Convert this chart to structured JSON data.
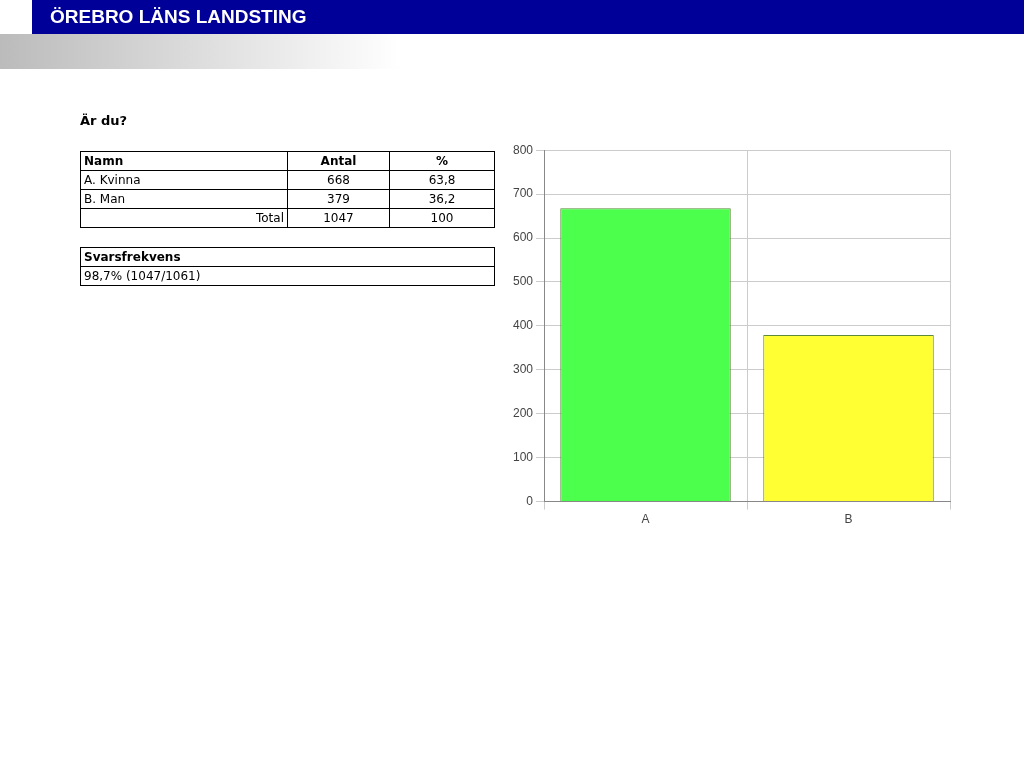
{
  "chart_data": {
    "type": "bar",
    "title": "Är du?",
    "categories": [
      "A",
      "B"
    ],
    "series": [
      {
        "colors": [
          "#4cff4c",
          "#ffff33"
        ],
        "values": [
          668,
          379
        ]
      }
    ],
    "ylim": [
      0,
      800
    ],
    "yticks": [
      0,
      100,
      200,
      300,
      400,
      500,
      600,
      700,
      800
    ],
    "grid": true,
    "legend": false,
    "annotations": [
      "ÖREBRO LÄNS LANDSTING",
      "Namn",
      "Antal",
      "%",
      "A. Kvinna",
      "668",
      "63,8",
      "B. Man",
      "379",
      "36,2",
      "Total",
      "1047",
      "100",
      "Svarsfrekvens",
      "98,7% (1047/1061)"
    ]
  }
}
